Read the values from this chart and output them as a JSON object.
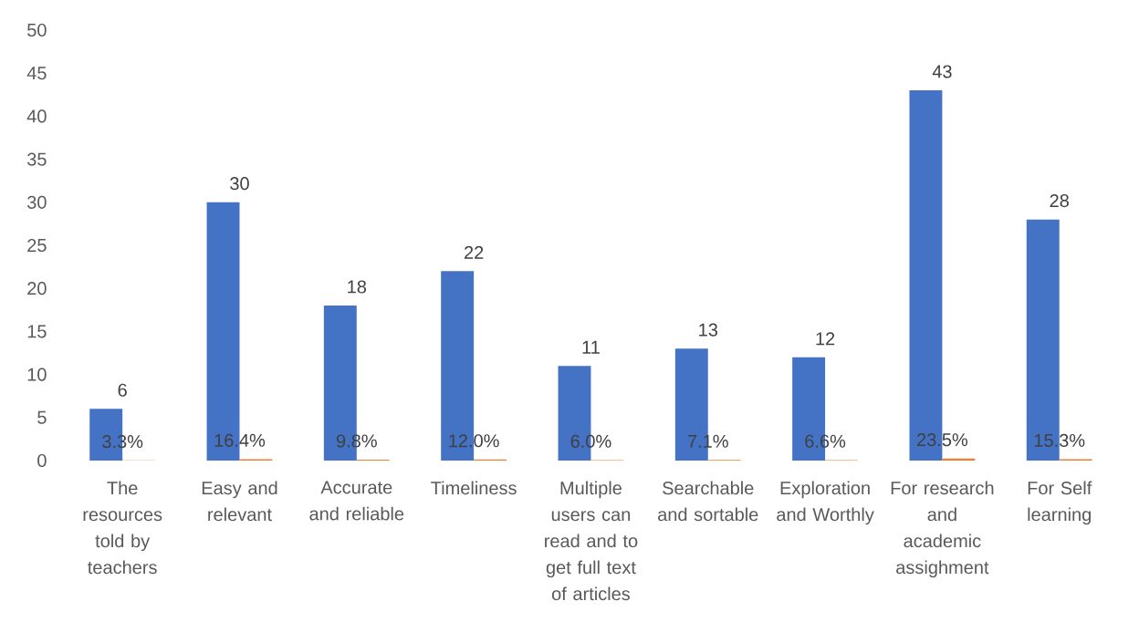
{
  "chart_data": {
    "type": "bar",
    "categories": [
      "The resources told by teachers",
      "Easy and relevant",
      "Accurate and reliable",
      "Timeliness",
      "Multiple users can read and to get full text of articles",
      "Searchable and sortable",
      "Exploration and Worthly",
      "For research and academic assighment",
      "For Self learning"
    ],
    "series": [
      {
        "color": "#4472c4",
        "values": [
          6,
          30,
          18,
          22,
          11,
          13,
          12,
          43,
          28
        ],
        "value_labels": [
          "6",
          "30",
          "18",
          "22",
          "11",
          "13",
          "12",
          "43",
          "28"
        ]
      },
      {
        "color": "#ed7d31",
        "values": [
          0.033,
          0.164,
          0.098,
          0.12,
          0.06,
          0.071,
          0.066,
          0.235,
          0.153
        ],
        "value_labels": [
          "3.3%",
          "16.4%",
          "9.8%",
          "12.0%",
          "6.0%",
          "7.1%",
          "6.6%",
          "23.5%",
          "15.3%"
        ]
      }
    ],
    "ylim": [
      0,
      50
    ],
    "yticks": [
      0,
      5,
      10,
      15,
      20,
      25,
      30,
      35,
      40,
      45,
      50
    ]
  }
}
